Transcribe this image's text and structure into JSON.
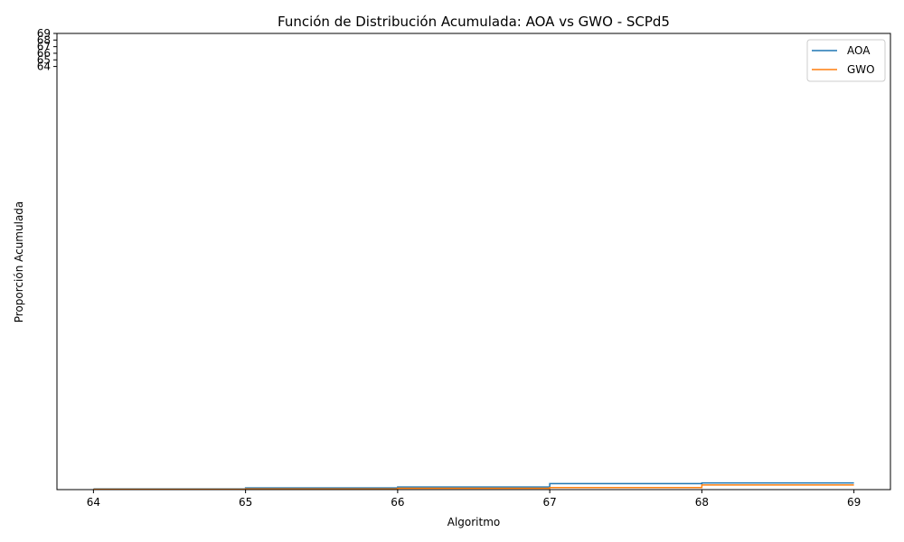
{
  "chart_data": {
    "type": "line",
    "title": "Función de Distribución Acumulada: AOA vs GWO - SCPd5",
    "xlabel": "Algoritmo",
    "ylabel": "Proporción Acumulada",
    "xlim": [
      63.76,
      69.24
    ],
    "ylim": [
      0,
      69
    ],
    "xticks": [
      64,
      65,
      66,
      67,
      68,
      69
    ],
    "yticks": [
      64,
      65,
      66,
      67,
      68,
      69
    ],
    "grid": false,
    "legend": "top-right",
    "step": "post",
    "series": [
      {
        "name": "AOA",
        "color": "#1f77b4",
        "x": [
          64,
          65,
          66,
          67,
          68,
          69
        ],
        "y": [
          0.1,
          0.25,
          0.4,
          0.9,
          1.0,
          1.0
        ]
      },
      {
        "name": "GWO",
        "color": "#ff7f0e",
        "x": [
          64,
          65,
          66,
          67,
          68,
          69
        ],
        "y": [
          0.05,
          0.1,
          0.2,
          0.3,
          0.7,
          0.7
        ]
      }
    ]
  }
}
